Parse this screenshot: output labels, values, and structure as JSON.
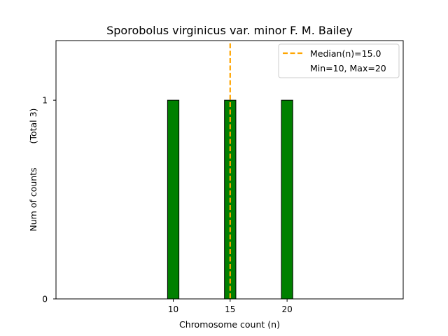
{
  "chart_data": {
    "type": "bar",
    "title": "Sporobolus virginicus var. minor F. M. Bailey",
    "xlabel": "Chromosome count (n)",
    "ylabel": "Num of counts",
    "ylabel_total": "(Total 3)",
    "x": [
      10,
      15,
      20
    ],
    "values": [
      1,
      1,
      1
    ],
    "xticks": [
      "10",
      "15",
      "20"
    ],
    "yticks": [
      "0",
      "1"
    ],
    "xlim": [
      -0.3,
      30.2
    ],
    "ylim": [
      0,
      1.3
    ],
    "bar_width": 1,
    "bar_color": "#008000",
    "median": 15.0,
    "median_color": "#FFA500",
    "legend": {
      "position": "top-right",
      "median_label": "Median(n)=15.0",
      "range_label": "Min=10, Max=20"
    },
    "grid": false
  }
}
